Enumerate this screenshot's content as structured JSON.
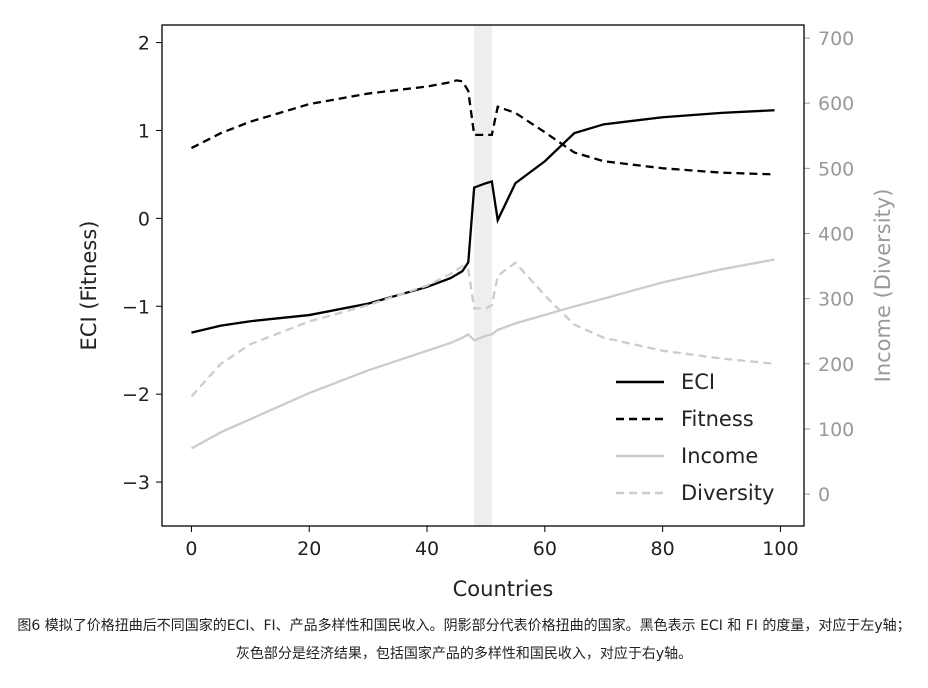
{
  "chart_data": {
    "type": "line",
    "x": [
      0,
      5,
      10,
      20,
      30,
      40,
      44,
      45,
      46,
      47,
      48,
      50,
      51,
      52,
      55,
      60,
      65,
      70,
      80,
      90,
      99
    ],
    "series": [
      {
        "name": "ECI",
        "color": "#000000",
        "dash": false,
        "axis": "y",
        "values": [
          -1.3,
          -1.22,
          -1.17,
          -1.1,
          -0.97,
          -0.78,
          -0.68,
          -0.64,
          -0.6,
          -0.5,
          0.35,
          0.4,
          0.42,
          -0.02,
          0.4,
          0.65,
          0.97,
          1.07,
          1.15,
          1.2,
          1.23
        ]
      },
      {
        "name": "Fitness",
        "color": "#000000",
        "dash": true,
        "axis": "y",
        "values": [
          0.8,
          0.97,
          1.1,
          1.3,
          1.42,
          1.5,
          1.55,
          1.57,
          1.56,
          1.45,
          0.95,
          0.95,
          0.95,
          1.27,
          1.2,
          0.98,
          0.75,
          0.65,
          0.57,
          0.52,
          0.5
        ]
      },
      {
        "name": "Income",
        "color": "#cccccc",
        "dash": false,
        "axis": "y2",
        "values": [
          70,
          95,
          115,
          155,
          190,
          220,
          232,
          236,
          240,
          245,
          236,
          243,
          245,
          252,
          262,
          275,
          288,
          300,
          325,
          345,
          360
        ]
      },
      {
        "name": "Diversity",
        "color": "#cccccc",
        "dash": true,
        "axis": "y2",
        "values": [
          150,
          200,
          230,
          265,
          290,
          320,
          338,
          344,
          350,
          345,
          285,
          285,
          290,
          335,
          355,
          305,
          260,
          240,
          220,
          208,
          200
        ]
      }
    ],
    "shaded": [
      48,
      51
    ],
    "xlabel": "Countries",
    "ylabel": "ECI (Fitness)",
    "y2label": "Income (Diversity)",
    "xlim": [
      -5,
      104
    ],
    "xticks": [
      0,
      20,
      40,
      60,
      80,
      100
    ],
    "ylim": [
      -3.5,
      2.2
    ],
    "yticks": [
      {
        "value": -3,
        "label": "−3"
      },
      {
        "value": -2,
        "label": "−2"
      },
      {
        "value": -1,
        "label": "−1"
      },
      0,
      1,
      2
    ],
    "y2lim": [
      -49,
      720
    ],
    "y2ticks": [
      0,
      100,
      200,
      300,
      400,
      500,
      600,
      700
    ],
    "legend": "lower right",
    "caption": "图6 模拟了价格扭曲后不同国家的ECI、FI、产品多样性和国民收入。阴影部分代表价格扭曲的国家。黑色表示 ECI 和 FI 的度量，对应于左y轴；灰色部分是经济结果，包括国家产品的多样性和国民收入，对应于右y轴。"
  }
}
